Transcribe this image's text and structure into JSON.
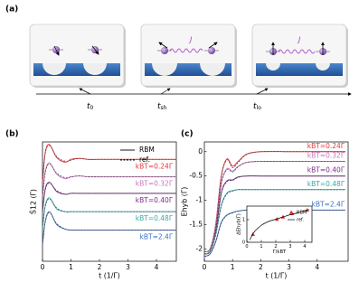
{
  "panel_a": {
    "label": "(a)",
    "coupling_labels": [
      "J",
      "J"
    ],
    "times": [
      {
        "main": "t",
        "sub": "0"
      },
      {
        "main": "t",
        "sub": "sh"
      },
      {
        "main": "t",
        "sub": "lo"
      }
    ]
  },
  "chart_data": [
    {
      "panel_label": "(b)",
      "type": "line",
      "x_label": "t (1/Γ)",
      "y_label": "Ṡ12 (Γ)",
      "xlim": [
        0,
        4.7
      ],
      "ylim": [
        0,
        1.3
      ],
      "xticks": [
        0,
        1,
        2,
        3,
        4
      ],
      "x": [
        0,
        0.1,
        0.25,
        0.5,
        0.8,
        1.0,
        1.3,
        1.6,
        2,
        3,
        4,
        4.7
      ],
      "legend": [
        {
          "name": "RBM",
          "dash": "solid"
        },
        {
          "name": "ref.",
          "dash": "dashed"
        }
      ],
      "series": [
        {
          "name": "kBT=0.24Γ",
          "color": "#e8353b",
          "values": [
            0.86,
            1.19,
            1.27,
            1.13,
            1.08,
            1.11,
            1.12,
            1.11,
            1.11,
            1.11,
            1.11,
            1.11
          ],
          "ref_values": [
            0.86,
            1.18,
            1.26,
            1.14,
            1.09,
            1.1,
            1.12,
            1.11,
            1.11,
            1.11,
            1.11,
            1.11
          ]
        },
        {
          "name": "kBT=0.32Γ",
          "color": "#c874c2",
          "values": [
            0.7,
            0.98,
            1.07,
            0.95,
            0.9,
            0.92,
            0.93,
            0.92,
            0.92,
            0.92,
            0.92,
            0.92
          ],
          "ref_values": [
            0.7,
            0.97,
            1.06,
            0.96,
            0.91,
            0.92,
            0.93,
            0.92,
            0.92,
            0.92,
            0.92,
            0.92
          ]
        },
        {
          "name": "kBT=0.40Γ",
          "color": "#7a2a88",
          "values": [
            0.54,
            0.79,
            0.86,
            0.76,
            0.73,
            0.74,
            0.74,
            0.74,
            0.74,
            0.74,
            0.74,
            0.74
          ],
          "ref_values": [
            0.54,
            0.78,
            0.85,
            0.77,
            0.73,
            0.74,
            0.74,
            0.74,
            0.74,
            0.74,
            0.74,
            0.74
          ]
        },
        {
          "name": "kBT=0.48Γ",
          "color": "#3aa7a8",
          "values": [
            0.36,
            0.61,
            0.69,
            0.57,
            0.54,
            0.54,
            0.54,
            0.54,
            0.54,
            0.54,
            0.54,
            0.54
          ],
          "ref_values": [
            0.36,
            0.6,
            0.68,
            0.58,
            0.54,
            0.54,
            0.54,
            0.54,
            0.54,
            0.54,
            0.54,
            0.54
          ]
        },
        {
          "name": "kBT=2.4Γ",
          "color": "#3b6fc4",
          "values": [
            0.18,
            0.44,
            0.54,
            0.4,
            0.35,
            0.34,
            0.34,
            0.34,
            0.34,
            0.34,
            0.34,
            0.34
          ],
          "ref_values": [
            0.18,
            0.43,
            0.53,
            0.41,
            0.35,
            0.34,
            0.34,
            0.34,
            0.34,
            0.34,
            0.34,
            0.34
          ]
        }
      ]
    },
    {
      "panel_label": "(c)",
      "type": "line",
      "x_label": "t (1/Γ)",
      "y_label": "Ehyb (Γ)",
      "xlim": [
        0,
        5.1
      ],
      "ylim": [
        -2.25,
        0.2
      ],
      "xticks": [
        0,
        1,
        2,
        3,
        4
      ],
      "yticks": [
        0,
        -0.5,
        -1,
        -1.5,
        -2
      ],
      "x": [
        0,
        0.2,
        0.4,
        0.6,
        0.8,
        1.0,
        1.2,
        1.5,
        2,
        3,
        4,
        5
      ],
      "series": [
        {
          "name": "kBT=0.24Γ",
          "color": "#e8353b",
          "values": [
            -2.05,
            -2.0,
            -1.5,
            -0.5,
            -0.15,
            -0.3,
            -0.2,
            -0.05,
            0,
            0,
            0,
            0
          ],
          "ref_values": [
            -2.05,
            -2.0,
            -1.52,
            -0.52,
            -0.17,
            -0.33,
            -0.22,
            -0.06,
            0,
            0,
            0,
            0
          ]
        },
        {
          "name": "kBT=0.32Γ",
          "color": "#c874c2",
          "values": [
            -2.05,
            -2.0,
            -1.55,
            -0.65,
            -0.35,
            -0.4,
            -0.3,
            -0.22,
            -0.2,
            -0.2,
            -0.2,
            -0.2
          ],
          "ref_values": [
            -2.05,
            -2.0,
            -1.57,
            -0.67,
            -0.37,
            -0.42,
            -0.31,
            -0.22,
            -0.2,
            -0.2,
            -0.2,
            -0.2
          ]
        },
        {
          "name": "kBT=0.40Γ",
          "color": "#7a2a88",
          "values": [
            -2.1,
            -2.05,
            -1.65,
            -0.85,
            -0.6,
            -0.58,
            -0.52,
            -0.5,
            -0.5,
            -0.5,
            -0.5,
            -0.5
          ],
          "ref_values": [
            -2.1,
            -2.05,
            -1.67,
            -0.87,
            -0.62,
            -0.59,
            -0.53,
            -0.5,
            -0.5,
            -0.5,
            -0.5,
            -0.5
          ]
        },
        {
          "name": "kBT=0.48Γ",
          "color": "#3aa7a8",
          "values": [
            -2.1,
            -2.05,
            -1.7,
            -1.1,
            -0.85,
            -0.8,
            -0.78,
            -0.78,
            -0.78,
            -0.78,
            -0.78,
            -0.78
          ],
          "ref_values": [
            -2.1,
            -2.05,
            -1.72,
            -1.12,
            -0.87,
            -0.81,
            -0.78,
            -0.78,
            -0.78,
            -0.78,
            -0.78,
            -0.78
          ]
        },
        {
          "name": "kBT=2.4Γ",
          "color": "#3b6fc4",
          "values": [
            -2.15,
            -2.1,
            -1.85,
            -1.45,
            -1.3,
            -1.25,
            -1.22,
            -1.2,
            -1.2,
            -1.2,
            -1.2,
            -1.2
          ],
          "ref_values": [
            -2.15,
            -2.1,
            -1.86,
            -1.47,
            -1.31,
            -1.26,
            -1.22,
            -1.2,
            -1.2,
            -1.2,
            -1.2,
            -1.2
          ]
        }
      ],
      "inset": {
        "type": "scatter",
        "x_label": "Γ/kBT",
        "y_label": "ΔEhyb(Γ)",
        "xlim": [
          0,
          4.5
        ],
        "ylim": [
          0,
          1.6
        ],
        "xticks": [
          0,
          1,
          2,
          3,
          4
        ],
        "yticks": [
          0,
          1
        ],
        "series": [
          {
            "name": "RBM",
            "color": "#e8353b",
            "marker": "triangle",
            "x": [
              0.42,
              2.08,
              2.5,
              3.13,
              4.17
            ],
            "values": [
              0.35,
              1.02,
              1.12,
              1.27,
              1.42
            ]
          },
          {
            "name": "ref.",
            "color": "#000000",
            "marker": "line",
            "x": [
              0.2,
              0.5,
              1,
              1.5,
              2,
              2.5,
              3,
              3.5,
              4,
              4.3
            ],
            "values": [
              0.1,
              0.45,
              0.75,
              0.92,
              1.02,
              1.12,
              1.22,
              1.3,
              1.4,
              1.45
            ]
          }
        ]
      }
    }
  ]
}
